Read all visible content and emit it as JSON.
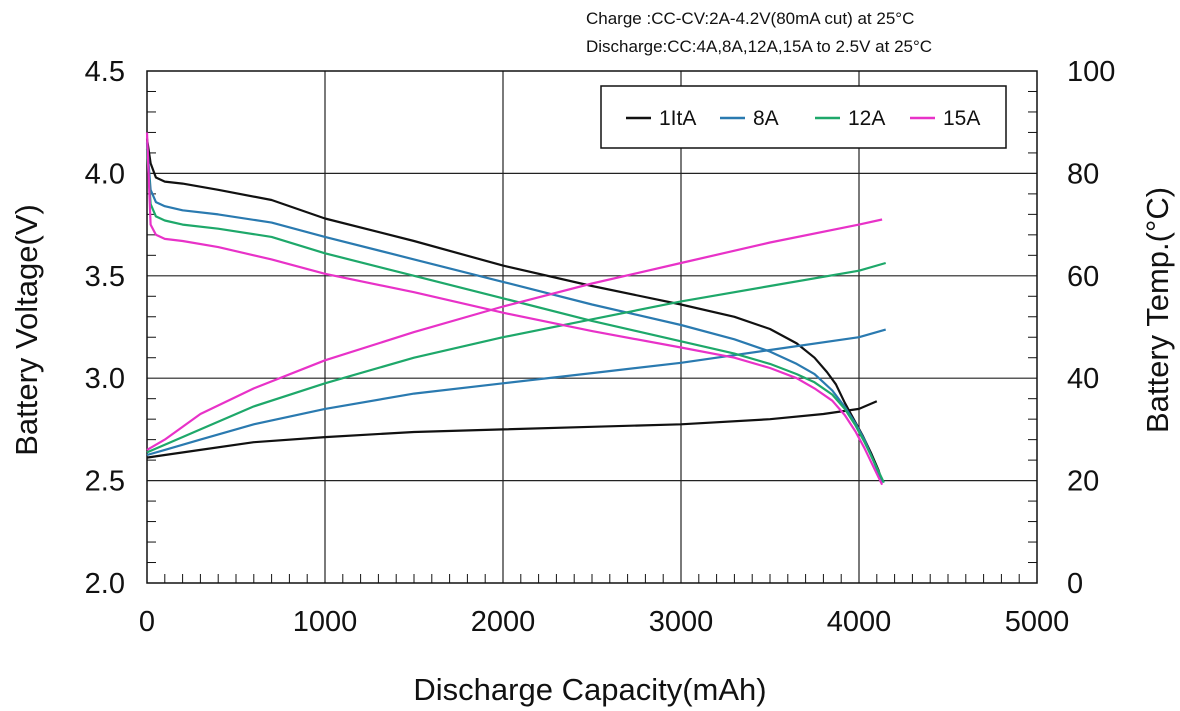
{
  "chart_data": {
    "type": "line",
    "notes": [
      "Charge :CC-CV:2A-4.2V(80mA  cut) at 25°C",
      "Discharge:CC:4A,8A,12A,15A  to 2.5V at 25°C"
    ],
    "xlabel": "Discharge Capacity(mAh)",
    "ylabel": "Battery Voltage(V)",
    "y2label": "Battery Temp.(°C)",
    "xlim": [
      0,
      5000
    ],
    "ylim": [
      2.0,
      4.5
    ],
    "y2lim": [
      0,
      100
    ],
    "xticks": [
      "0",
      "1000",
      "2000",
      "3000",
      "4000",
      "5000"
    ],
    "yticks": [
      "2.0",
      "2.5",
      "3.0",
      "3.5",
      "4.0",
      "4.5"
    ],
    "y2ticks": [
      "0",
      "20",
      "40",
      "60",
      "80",
      "100"
    ],
    "grid": true,
    "legend": {
      "placement": "top-right"
    },
    "series": [
      {
        "name": "1ItA",
        "color": "#111111",
        "voltage": {
          "x": [
            0,
            20,
            50,
            100,
            200,
            400,
            700,
            1000,
            1500,
            2000,
            2500,
            3000,
            3300,
            3500,
            3650,
            3750,
            3820,
            3870,
            3920,
            3970,
            4020,
            4070,
            4110,
            4130
          ],
          "y": [
            4.17,
            4.05,
            3.98,
            3.96,
            3.95,
            3.92,
            3.87,
            3.78,
            3.67,
            3.55,
            3.45,
            3.36,
            3.3,
            3.24,
            3.17,
            3.1,
            3.03,
            2.97,
            2.88,
            2.8,
            2.72,
            2.63,
            2.55,
            2.49
          ]
        },
        "temperature": {
          "x": [
            0,
            100,
            300,
            600,
            1000,
            1500,
            2000,
            2500,
            3000,
            3500,
            3800,
            4000,
            4100
          ],
          "y": [
            24.5,
            25.0,
            26.0,
            27.5,
            28.5,
            29.5,
            30.0,
            30.5,
            31.0,
            32.0,
            33.0,
            34.0,
            35.5
          ]
        }
      },
      {
        "name": "8A",
        "color": "#2a7ab0",
        "voltage": {
          "x": [
            0,
            20,
            50,
            100,
            200,
            400,
            700,
            1000,
            1500,
            2000,
            2500,
            3000,
            3300,
            3500,
            3650,
            3750,
            3850,
            3920,
            3980,
            4030,
            4080,
            4130
          ],
          "y": [
            4.15,
            3.92,
            3.86,
            3.84,
            3.82,
            3.8,
            3.76,
            3.69,
            3.58,
            3.47,
            3.36,
            3.26,
            3.19,
            3.13,
            3.07,
            3.02,
            2.94,
            2.86,
            2.78,
            2.7,
            2.6,
            2.49
          ]
        },
        "temperature": {
          "x": [
            0,
            100,
            300,
            600,
            1000,
            1500,
            2000,
            2500,
            3000,
            3500,
            4000,
            4150
          ],
          "y": [
            25.0,
            26.0,
            28.0,
            31.0,
            34.0,
            37.0,
            39.0,
            41.0,
            43.0,
            45.5,
            48.0,
            49.5
          ]
        }
      },
      {
        "name": "12A",
        "color": "#1ea86a",
        "voltage": {
          "x": [
            0,
            20,
            50,
            100,
            200,
            400,
            700,
            1000,
            1500,
            2000,
            2500,
            3000,
            3300,
            3500,
            3650,
            3750,
            3850,
            3920,
            3980,
            4030,
            4080,
            4140
          ],
          "y": [
            4.12,
            3.85,
            3.79,
            3.77,
            3.75,
            3.73,
            3.69,
            3.61,
            3.5,
            3.39,
            3.28,
            3.18,
            3.12,
            3.07,
            3.02,
            2.98,
            2.92,
            2.85,
            2.77,
            2.69,
            2.6,
            2.49
          ]
        },
        "temperature": {
          "x": [
            0,
            100,
            300,
            600,
            1000,
            1500,
            2000,
            2500,
            3000,
            3500,
            4000,
            4150
          ],
          "y": [
            25.5,
            27.0,
            30.0,
            34.5,
            39.0,
            44.0,
            48.0,
            51.5,
            55.0,
            58.0,
            61.0,
            62.5
          ]
        }
      },
      {
        "name": "15A",
        "color": "#e832c8",
        "voltage": {
          "x": [
            0,
            20,
            50,
            100,
            200,
            400,
            700,
            1000,
            1500,
            2000,
            2500,
            3000,
            3300,
            3500,
            3650,
            3750,
            3850,
            3920,
            3980,
            4030,
            4080,
            4130
          ],
          "y": [
            4.2,
            3.75,
            3.7,
            3.68,
            3.67,
            3.64,
            3.58,
            3.51,
            3.42,
            3.32,
            3.23,
            3.15,
            3.1,
            3.05,
            3.0,
            2.95,
            2.89,
            2.82,
            2.74,
            2.66,
            2.57,
            2.48
          ]
        },
        "temperature": {
          "x": [
            0,
            100,
            300,
            600,
            1000,
            1500,
            2000,
            2500,
            3000,
            3500,
            4000,
            4130
          ],
          "y": [
            26.0,
            28.0,
            33.0,
            38.0,
            43.5,
            49.0,
            54.0,
            58.5,
            62.5,
            66.5,
            70.0,
            71.0
          ]
        }
      }
    ]
  }
}
